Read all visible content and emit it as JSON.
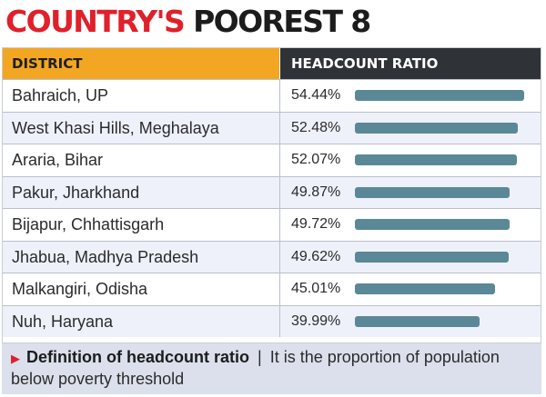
{
  "title": {
    "part1": "COUNTRY'S",
    "part2": "POOREST 8"
  },
  "table": {
    "header_district": "DISTRICT",
    "header_ratio": "HEADCOUNT RATIO"
  },
  "chart_data": {
    "type": "bar",
    "title": "COUNTRY'S POOREST 8",
    "xlabel": "DISTRICT",
    "ylabel": "HEADCOUNT RATIO",
    "categories": [
      "Bahraich, UP",
      "West Khasi Hills, Meghalaya",
      "Araria, Bihar",
      "Pakur, Jharkhand",
      "Bijapur, Chhattisgarh",
      "Jhabua, Madhya Pradesh",
      "Malkangiri, Odisha",
      "Nuh, Haryana"
    ],
    "values": [
      54.44,
      52.48,
      52.07,
      49.87,
      49.72,
      49.62,
      45.01,
      39.99
    ],
    "value_labels": [
      "54.44%",
      "52.48%",
      "52.07%",
      "49.87%",
      "49.72%",
      "49.62%",
      "45.01%",
      "39.99%"
    ],
    "unit": "%",
    "orientation": "horizontal",
    "ylim": [
      0,
      58
    ],
    "grid": false,
    "colors": {
      "bar": "#5b8896",
      "header_left": "#f2a622",
      "header_right": "#2f3236",
      "title_accent": "#e0202a"
    }
  },
  "footer": {
    "arrow_icon": "triangle-right-icon",
    "term": "Definition of headcount ratio",
    "separator": "|",
    "definition": "It is the proportion of population below poverty threshold"
  }
}
